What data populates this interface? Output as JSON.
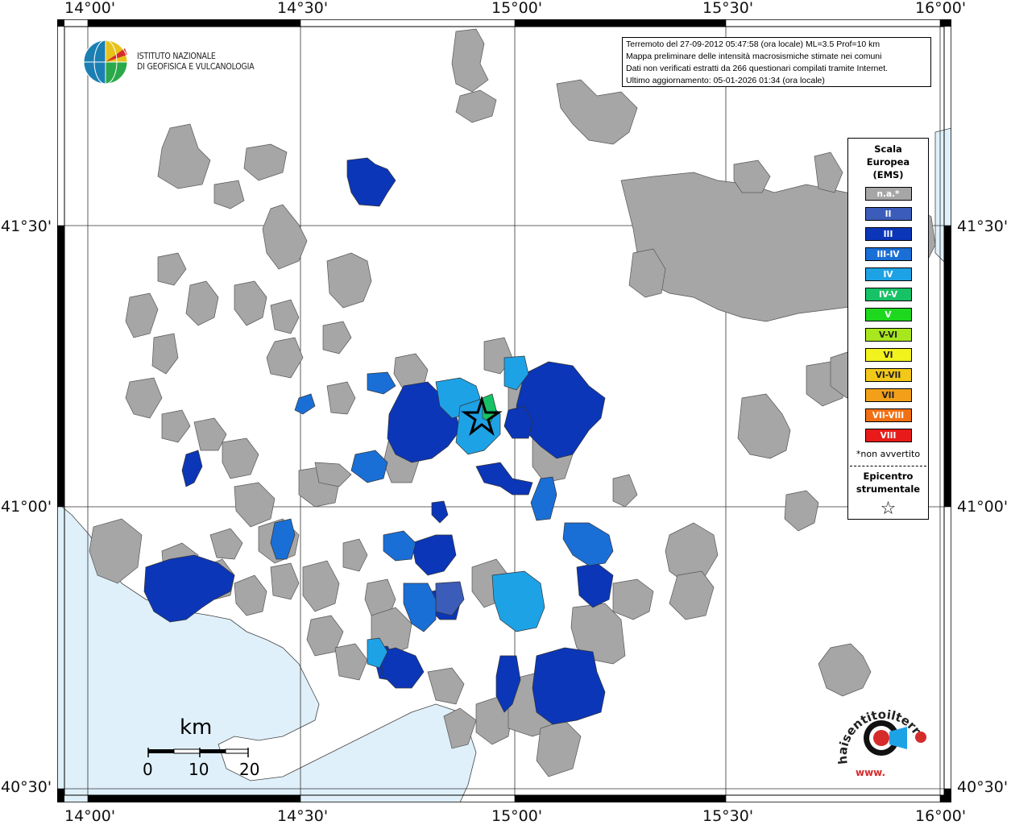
{
  "axes": {
    "top_labels": [
      "14°00'",
      "14°30'",
      "15°00'",
      "15°30'",
      "16°00'"
    ],
    "bottom_labels": [
      "14°00'",
      "14°30'",
      "15°00'",
      "15°30'",
      "16°00'"
    ],
    "left_labels": [
      "41°30'",
      "41°00'",
      "40°30'"
    ],
    "right_labels": [
      "41°30'",
      "41°00'",
      "40°30'"
    ]
  },
  "info_box": {
    "line1": "Terremoto del 27-09-2012 05:47:58 (ora locale) ML=3.5 Prof=10 km",
    "line2": "Mappa preliminare delle intensità macrosismiche stimate nei comuni",
    "line3": "Dati non verificati estratti da 266 questionari compilati tramite Internet.",
    "line4": "Ultimo aggiornamento: 05-01-2026 01:34 (ora locale)"
  },
  "logo": {
    "line1": "ISTITUTO NAZIONALE",
    "line2": "DI GEOFISICA E VULCANOLOGIA"
  },
  "legend": {
    "title1": "Scala",
    "title2": "Europea",
    "title3": "(EMS)",
    "items": [
      {
        "label": "n.a.*",
        "color": "#a6a6a6"
      },
      {
        "label": "II",
        "color": "#3b5cb8"
      },
      {
        "label": "III",
        "color": "#0b36b8"
      },
      {
        "label": "III-IV",
        "color": "#1a6fd6"
      },
      {
        "label": "IV",
        "color": "#1ea2e6"
      },
      {
        "label": "IV-V",
        "color": "#16c265"
      },
      {
        "label": "V",
        "color": "#1ed81e"
      },
      {
        "label": "V-VI",
        "color": "#a8e61e"
      },
      {
        "label": "VI",
        "color": "#f2f21e"
      },
      {
        "label": "VI-VII",
        "color": "#f2c81a"
      },
      {
        "label": "VII",
        "color": "#f2a01a"
      },
      {
        "label": "VII-VIII",
        "color": "#f27014"
      },
      {
        "label": "VIII",
        "color": "#e81a1a"
      }
    ],
    "note": "*non avvertito",
    "epicentro1": "Epicentro",
    "epicentro2": "strumentale",
    "star": "☆"
  },
  "scale": {
    "unit": "km",
    "ticks": [
      "0",
      "10",
      "20"
    ]
  },
  "watermark": {
    "text": "haisentitoilterremoto.it",
    "text2": "www."
  },
  "colors": {
    "sea": "#dff0fa",
    "land": "#ffffff",
    "na": "#a6a6a6"
  }
}
